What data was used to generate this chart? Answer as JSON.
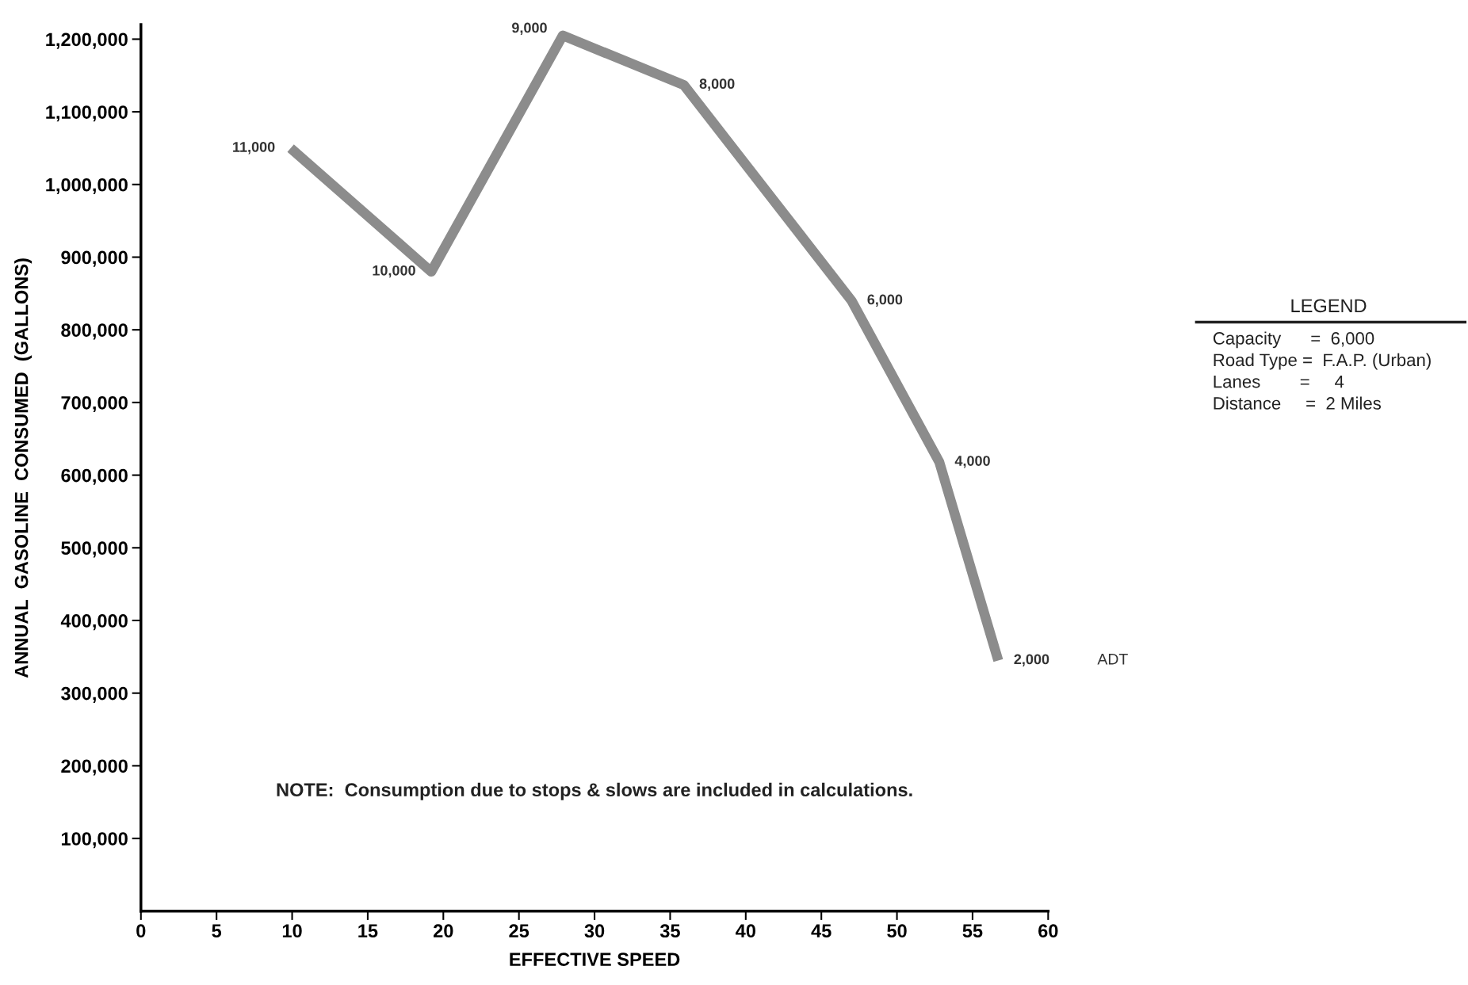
{
  "chart_data": {
    "type": "line",
    "xlabel": "EFFECTIVE SPEED",
    "ylabel": "ANNUAL  GASOLINE  CONSUMED  (GALLONS)",
    "x": [
      9.9,
      19.2,
      27.9,
      35.9,
      47.0,
      52.8,
      56.7
    ],
    "series": [
      {
        "color": "#8c8c8c",
        "values": [
          1050000,
          880000,
          1205000,
          1137000,
          840000,
          618000,
          345000
        ]
      }
    ],
    "xlim": [
      0,
      60
    ],
    "xticks": [
      0,
      5,
      10,
      15,
      20,
      25,
      30,
      35,
      40,
      45,
      50,
      55,
      60
    ],
    "ylim": [
      0,
      1220000
    ],
    "yticks": [
      {
        "value": 100000,
        "label": "100,000"
      },
      {
        "value": 200000,
        "label": "200,000"
      },
      {
        "value": 300000,
        "label": "300,000"
      },
      {
        "value": 400000,
        "label": "400,000"
      },
      {
        "value": 500000,
        "label": "500,000"
      },
      {
        "value": 600000,
        "label": "600,000"
      },
      {
        "value": 700000,
        "label": "700,000"
      },
      {
        "value": 800000,
        "label": "800,000"
      },
      {
        "value": 900000,
        "label": "900,000"
      },
      {
        "value": 1000000,
        "label": "1,000,000"
      },
      {
        "value": 1100000,
        "label": "1,100,000"
      },
      {
        "value": 1200000,
        "label": "1,200,000"
      }
    ],
    "grid": false,
    "legend": false,
    "marker": "none",
    "line_style": "solid",
    "annotations": [
      {
        "text": "11,000",
        "x": 9.9,
        "y": 1050000
      },
      {
        "text": "10,000",
        "x": 19.2,
        "y": 880000
      },
      {
        "text": "9,000",
        "x": 27.9,
        "y": 1205000
      },
      {
        "text": "8,000",
        "x": 35.9,
        "y": 1137000
      },
      {
        "text": "6,000",
        "x": 47.0,
        "y": 840000
      },
      {
        "text": "4,000",
        "x": 52.8,
        "y": 618000
      },
      {
        "text": "2,000",
        "x": 56.7,
        "y": 345000
      },
      "ADT",
      "NOTE:  Consumption due to stops & slows are included in calculations.",
      "LEGEND",
      "Capacity      =  6,000",
      "Road Type =  F.A.P. (Urban)",
      "Lanes        =     4",
      "Distance     =  2 Miles"
    ]
  }
}
